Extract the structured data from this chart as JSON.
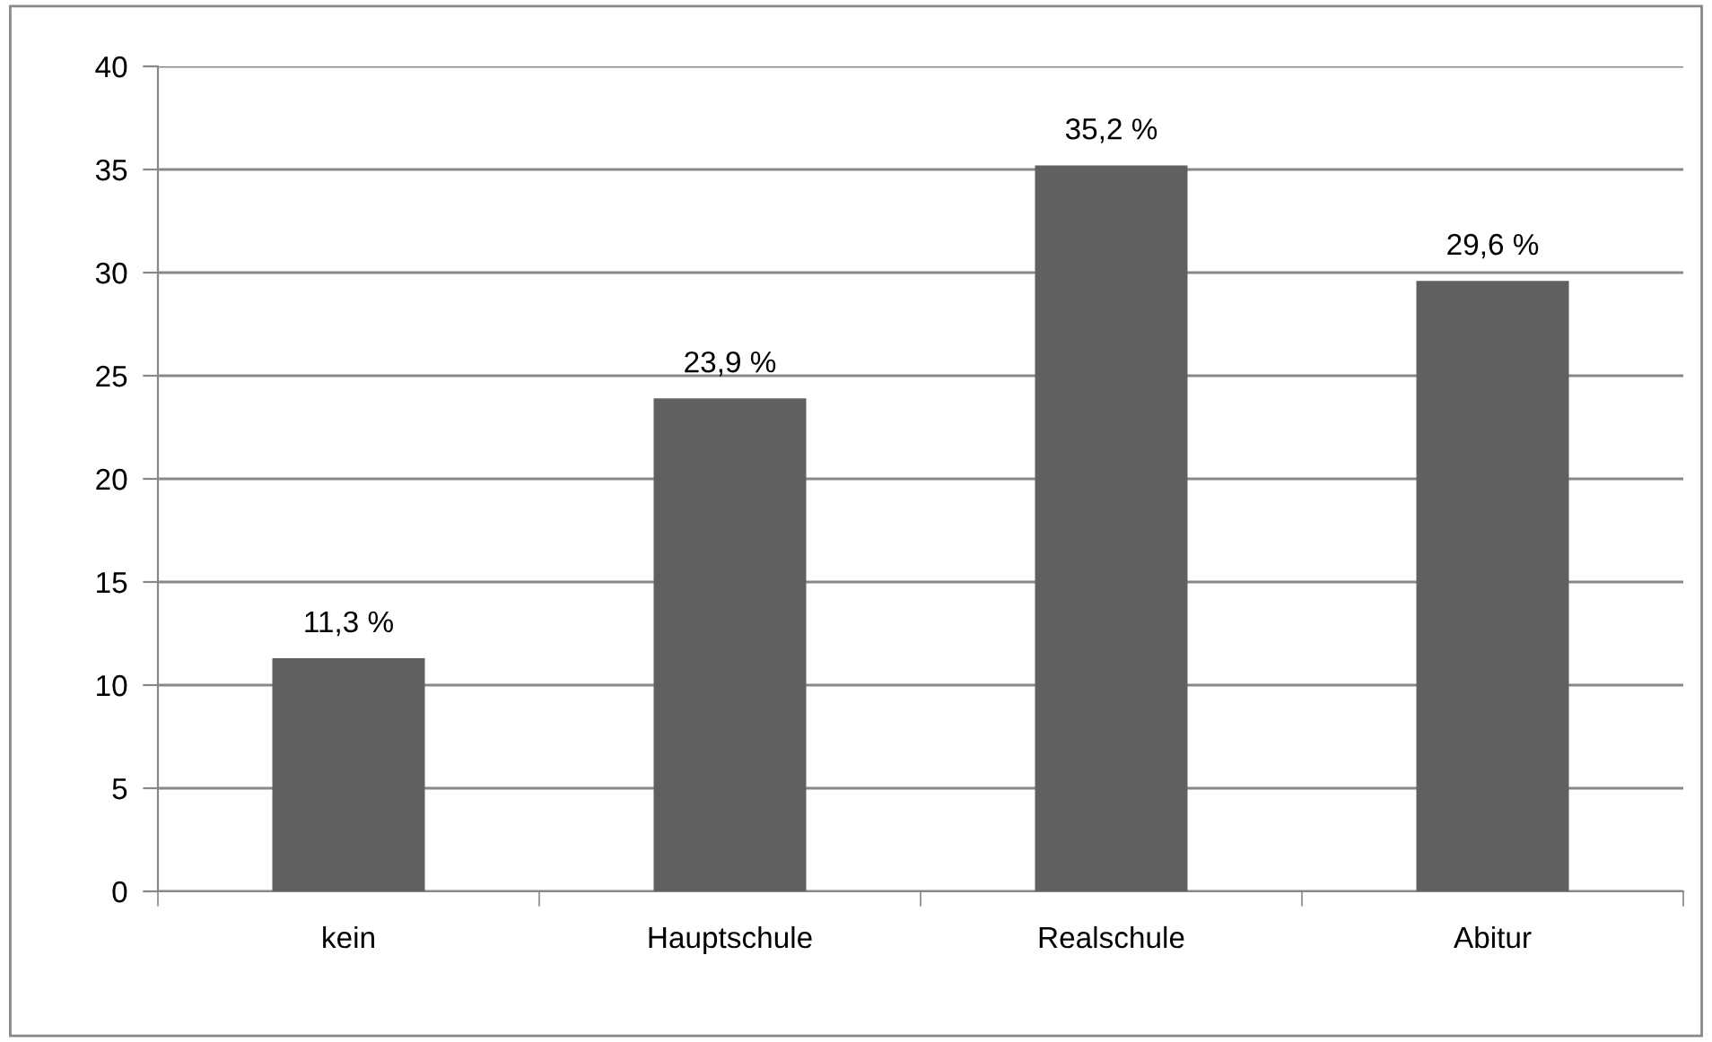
{
  "chart_data": {
    "type": "bar",
    "categories": [
      "kein",
      "Hauptschule",
      "Realschule",
      "Abitur"
    ],
    "values": [
      11.3,
      23.9,
      35.2,
      29.6
    ],
    "color": "#606060",
    "value_labels": [
      "11,3 %",
      "23,9 %",
      "35,2 %",
      "29,6 %"
    ],
    "ylim": [
      0,
      40
    ],
    "yticks": [
      0,
      5,
      10,
      15,
      20,
      25,
      30,
      35,
      40
    ],
    "grid": "y",
    "legend": false
  }
}
